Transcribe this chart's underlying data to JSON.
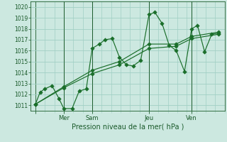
{
  "xlabel": "Pression niveau de la mer( hPa )",
  "ylim": [
    1010.5,
    1020.5
  ],
  "yticks": [
    1011,
    1012,
    1013,
    1014,
    1015,
    1016,
    1017,
    1018,
    1019,
    1020
  ],
  "bg_color": "#cce8e0",
  "grid_color": "#a0cfc4",
  "line_color": "#1a6e2a",
  "tick_label_color": "#1a5a2a",
  "xlabel_color": "#1a5a2a",
  "xtick_positions": [
    0,
    48,
    96,
    192,
    264
  ],
  "xtick_labels": [
    "",
    "Mer",
    "Sam",
    "Jeu",
    "Ven"
  ],
  "xmin": -8,
  "xmax": 320,
  "series1_x": [
    0,
    8,
    16,
    28,
    40,
    48,
    62,
    74,
    86,
    96,
    108,
    118,
    130,
    142,
    154,
    165,
    178,
    192,
    202,
    214,
    226,
    238,
    252,
    264,
    274,
    286,
    298,
    310
  ],
  "series1_y": [
    1011.1,
    1012.2,
    1012.5,
    1012.8,
    1011.6,
    1010.7,
    1010.7,
    1012.3,
    1012.5,
    1016.2,
    1016.6,
    1017.0,
    1017.1,
    1015.4,
    1014.7,
    1014.6,
    1015.1,
    1019.3,
    1019.5,
    1018.5,
    1016.5,
    1016.0,
    1014.1,
    1018.0,
    1018.3,
    1015.9,
    1017.5,
    1017.6
  ],
  "series2_x": [
    0,
    48,
    96,
    142,
    192,
    238,
    264,
    310
  ],
  "series2_y": [
    1011.1,
    1012.6,
    1013.9,
    1014.7,
    1016.2,
    1016.4,
    1017.1,
    1017.5
  ],
  "series3_x": [
    0,
    48,
    96,
    142,
    192,
    238,
    264,
    310
  ],
  "series3_y": [
    1011.1,
    1012.7,
    1014.2,
    1015.0,
    1016.6,
    1016.6,
    1017.3,
    1017.7
  ],
  "minor_xtick_interval": 16
}
